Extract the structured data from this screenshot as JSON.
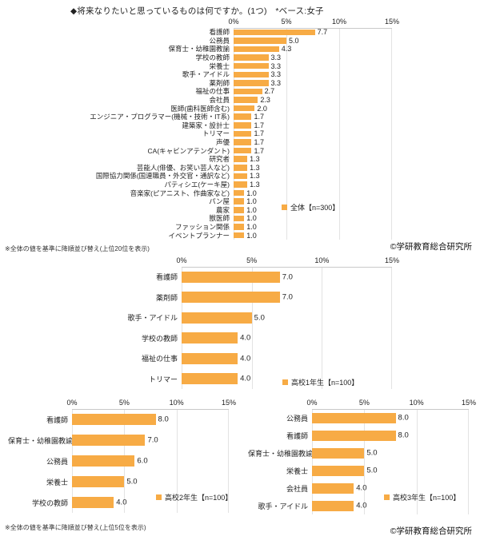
{
  "page": {
    "title": "◆将来なりたいと思っているものは何ですか。(1つ)　*ベース:女子",
    "note_top": "※全体の値を基準に降順並び替え(上位20位を表示)",
    "note_bottom": "※全体の値を基準に降順並び替え(上位5位を表示)",
    "credit": "©学研教育総合研究所"
  },
  "colors": {
    "bar": "#F7AB45",
    "grid": "#E3E3E3",
    "text": "#222222"
  },
  "chart_data": [
    {
      "type": "bar",
      "orientation": "horizontal",
      "title": "全体",
      "legend": "全体【n=300】",
      "legend_position": "inside-right",
      "grid": true,
      "xlim": [
        0,
        15
      ],
      "ticks": [
        "0%",
        "5%",
        "10%",
        "15%"
      ],
      "categories": [
        "看護師",
        "公務員",
        "保育士・幼稚園教諭",
        "学校の教師",
        "栄養士",
        "歌手・アイドル",
        "薬剤師",
        "福祉の仕事",
        "会社員",
        "医師(歯科医師含む)",
        "エンジニア・プログラマー(機械・技術・IT系)",
        "建築家・設計士",
        "トリマー",
        "声優",
        "CA(キャビンアテンダント)",
        "研究者",
        "芸能人(俳優、お笑い芸人など)",
        "国際協力関係(国連職員・外交官・通訳など)",
        "パティシエ(ケーキ屋)",
        "音楽家(ピアニスト、作曲家など)",
        "パン屋",
        "農家",
        "獣医師",
        "ファッション関係",
        "イベントプランナー"
      ],
      "values": [
        7.7,
        5.0,
        4.3,
        3.3,
        3.3,
        3.3,
        3.3,
        2.7,
        2.3,
        2.0,
        1.7,
        1.7,
        1.7,
        1.7,
        1.7,
        1.3,
        1.3,
        1.3,
        1.3,
        1.0,
        1.0,
        1.0,
        1.0,
        1.0,
        1.0
      ]
    },
    {
      "type": "bar",
      "orientation": "horizontal",
      "title": "高校1年生",
      "legend": "高校1年生【n=100】",
      "legend_position": "inside-right",
      "grid": true,
      "xlim": [
        0,
        15
      ],
      "ticks": [
        "0%",
        "5%",
        "10%",
        "15%"
      ],
      "categories": [
        "看護師",
        "薬剤師",
        "歌手・アイドル",
        "学校の教師",
        "福祉の仕事",
        "トリマー"
      ],
      "values": [
        7.0,
        7.0,
        5.0,
        4.0,
        4.0,
        4.0
      ]
    },
    {
      "type": "bar",
      "orientation": "horizontal",
      "title": "高校2年生",
      "legend": "高校2年生【n=100】",
      "legend_position": "inside-right",
      "grid": true,
      "xlim": [
        0,
        15
      ],
      "ticks": [
        "0%",
        "5%",
        "10%",
        "15%"
      ],
      "categories": [
        "看護師",
        "保育士・幼稚園教諭",
        "公務員",
        "栄養士",
        "学校の教師"
      ],
      "values": [
        8.0,
        7.0,
        6.0,
        5.0,
        4.0
      ]
    },
    {
      "type": "bar",
      "orientation": "horizontal",
      "title": "高校3年生",
      "legend": "高校3年生【n=100】",
      "legend_position": "inside-right",
      "grid": true,
      "xlim": [
        0,
        15
      ],
      "ticks": [
        "0%",
        "5%",
        "10%",
        "15%"
      ],
      "categories": [
        "公務員",
        "看護師",
        "保育士・幼稚園教諭",
        "栄養士",
        "会社員",
        "歌手・アイドル"
      ],
      "values": [
        8.0,
        8.0,
        5.0,
        5.0,
        4.0,
        4.0
      ]
    }
  ]
}
